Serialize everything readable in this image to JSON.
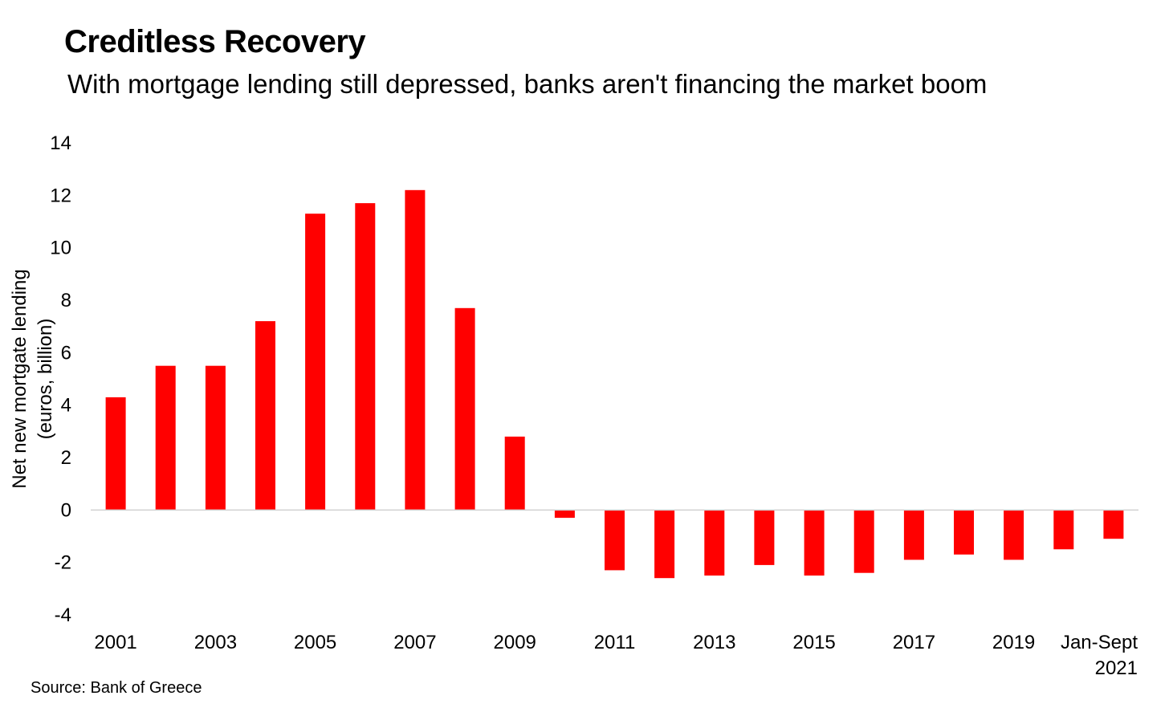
{
  "title": "Creditless Recovery",
  "subtitle": "With mortgage lending still depressed, banks aren't financing the market boom",
  "source": "Source: Bank of Greece",
  "colors": {
    "bar": "#ff0000",
    "axis": "#d0d0d0",
    "text": "#000000",
    "background": "#ffffff"
  },
  "chart_data": {
    "type": "bar",
    "title": "Creditless Recovery",
    "subtitle": "With mortgage lending still depressed, banks aren't financing the market boom",
    "xlabel": "",
    "ylabel_lines": [
      "Net new mortgate lending",
      "(euros, billion)"
    ],
    "ylim": [
      -4,
      14
    ],
    "yticks": [
      14,
      12,
      10,
      8,
      6,
      4,
      2,
      0,
      -2,
      -4
    ],
    "grid": false,
    "categories": [
      "2001",
      "2002",
      "2003",
      "2004",
      "2005",
      "2006",
      "2007",
      "2008",
      "2009",
      "2010",
      "2011",
      "2012",
      "2013",
      "2014",
      "2015",
      "2016",
      "2017",
      "2018",
      "2019",
      "2020",
      "Jan-Sept 2021"
    ],
    "x_tick_labels": [
      {
        "index": 0,
        "lines": [
          "2001"
        ]
      },
      {
        "index": 2,
        "lines": [
          "2003"
        ]
      },
      {
        "index": 4,
        "lines": [
          "2005"
        ]
      },
      {
        "index": 6,
        "lines": [
          "2007"
        ]
      },
      {
        "index": 8,
        "lines": [
          "2009"
        ]
      },
      {
        "index": 10,
        "lines": [
          "2011"
        ]
      },
      {
        "index": 12,
        "lines": [
          "2013"
        ]
      },
      {
        "index": 14,
        "lines": [
          "2015"
        ]
      },
      {
        "index": 16,
        "lines": [
          "2017"
        ]
      },
      {
        "index": 18,
        "lines": [
          "2019"
        ]
      },
      {
        "index": 20,
        "lines": [
          "Jan-Sept",
          "2021"
        ]
      }
    ],
    "series": [
      {
        "name": "Net new mortgage lending",
        "values": [
          4.3,
          5.5,
          5.5,
          7.2,
          11.3,
          11.7,
          12.2,
          7.7,
          2.8,
          -0.3,
          -2.3,
          -2.6,
          -2.5,
          -2.1,
          -2.5,
          -2.4,
          -1.9,
          -1.7,
          -1.9,
          -1.5,
          -1.1
        ]
      }
    ]
  }
}
